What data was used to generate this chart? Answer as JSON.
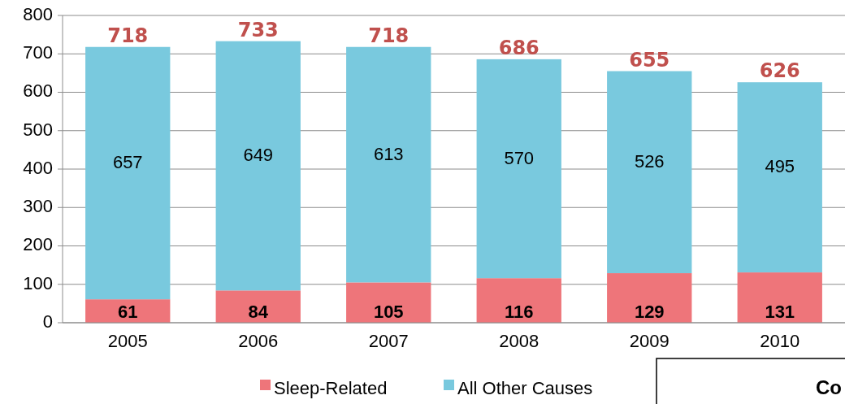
{
  "chart_data": {
    "type": "bar",
    "stacked": true,
    "categories": [
      "2005",
      "2006",
      "2007",
      "2008",
      "2009",
      "2010"
    ],
    "series": [
      {
        "name": "Sleep-Related",
        "color": "#ee757a",
        "values": [
          61,
          84,
          105,
          116,
          129,
          131
        ]
      },
      {
        "name": "All Other Causes",
        "color": "#79c9de",
        "values": [
          657,
          649,
          613,
          570,
          526,
          495
        ]
      }
    ],
    "totals": [
      "718",
      "733",
      "718",
      "686",
      "655",
      "626"
    ],
    "data_labels": true,
    "ylim": [
      0,
      800
    ],
    "yticks": [
      0,
      100,
      200,
      300,
      400,
      500,
      600,
      700,
      800
    ],
    "grid": "y",
    "legend": "bottom",
    "annotations": [
      "Co"
    ]
  }
}
